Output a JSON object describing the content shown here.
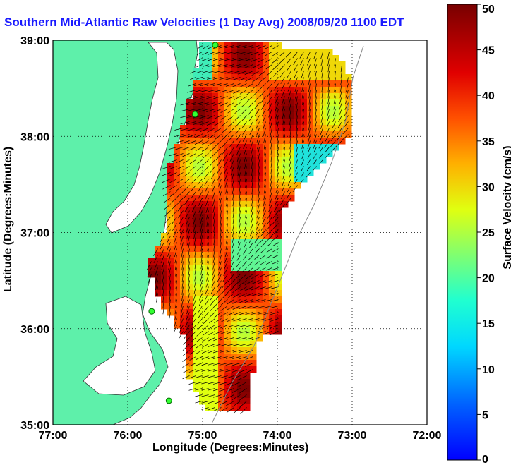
{
  "title": "Southern Mid-Atlantic Raw Velocities (1 Day Avg) 2008/09/20 1100 EDT",
  "axes": {
    "xlabel": "Longitude (Degrees:Minutes)",
    "ylabel": "Latitude (Degrees:Minutes)",
    "xticks": [
      "77:00",
      "76:00",
      "75:00",
      "74:00",
      "73:00",
      "72:00"
    ],
    "yticks": [
      "39:00",
      "38:00",
      "37:00",
      "36:00",
      "35:00"
    ],
    "xlim": [
      -77,
      -72
    ],
    "ylim": [
      35,
      39
    ],
    "grid": true
  },
  "colorbar": {
    "label": "Surface Velocity (cm/s)",
    "ticks": [
      "0",
      "5",
      "10",
      "15",
      "20",
      "25",
      "30",
      "35",
      "40",
      "45",
      "50"
    ],
    "range": [
      0,
      50
    ],
    "colormap": "jet"
  },
  "colors": {
    "land": "#5ef0aa",
    "ocean": "#ffffff",
    "title": "#1a1aff",
    "station": "#33ff33"
  },
  "stations": [
    {
      "lon": -74.83,
      "lat": 38.95
    },
    {
      "lon": -75.1,
      "lat": 38.23
    },
    {
      "lon": -75.68,
      "lat": 36.18
    },
    {
      "lon": -75.45,
      "lat": 35.25
    }
  ]
}
